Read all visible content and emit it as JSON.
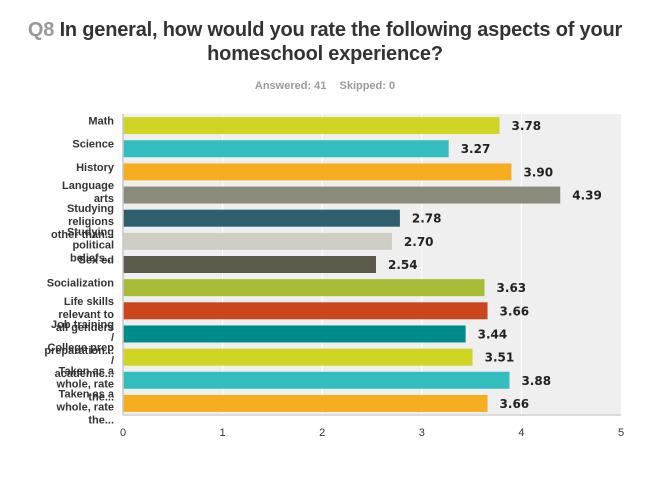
{
  "header": {
    "question_number": "Q8",
    "question_text": "In general, how would you rate the following aspects of your homeschool experience?",
    "answered": "Answered: 41",
    "skipped": "Skipped: 0"
  },
  "chart_data": {
    "type": "bar",
    "orientation": "horizontal",
    "title": "Q8 In general, how would you rate the following aspects of your homeschool experience?",
    "xlabel": "",
    "ylabel": "",
    "xlim": [
      0,
      5
    ],
    "xticks": [
      0,
      1,
      2,
      3,
      4,
      5
    ],
    "grid": true,
    "legend": "none",
    "categories": [
      [
        "Math"
      ],
      [
        "Science"
      ],
      [
        "History"
      ],
      [
        "Language",
        "arts"
      ],
      [
        "Studying",
        "religions",
        "other than..."
      ],
      [
        "Studying",
        "political",
        "beliefs..."
      ],
      [
        "Sex ed"
      ],
      [
        "Socialization"
      ],
      [
        "Life skills",
        "relevant to",
        "all genders"
      ],
      [
        "Job training",
        "/",
        "preparation..."
      ],
      [
        "College prep",
        "/",
        "academic..."
      ],
      [
        "Taken as a",
        "whole, rate",
        "the..."
      ],
      [
        "Taken as a",
        "whole, rate",
        "the..."
      ]
    ],
    "values": [
      3.78,
      3.27,
      3.9,
      4.39,
      2.78,
      2.7,
      2.54,
      3.63,
      3.66,
      3.44,
      3.51,
      3.88,
      3.66
    ],
    "value_labels": [
      "3.78",
      "3.27",
      "3.90",
      "4.39",
      "2.78",
      "2.70",
      "2.54",
      "3.63",
      "3.66",
      "3.44",
      "3.51",
      "3.88",
      "3.66"
    ],
    "colors": [
      "#d0d523",
      "#33bdbe",
      "#f7ad20",
      "#8a8b7a",
      "#2e5f6e",
      "#cfcec2",
      "#5b5a4b",
      "#a9bb36",
      "#c9461f",
      "#008b8b",
      "#d0d523",
      "#33bdbe",
      "#f7ad20"
    ]
  }
}
